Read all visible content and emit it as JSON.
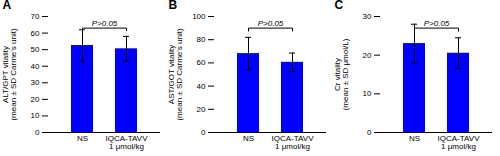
{
  "chart_data": [
    {
      "type": "bar",
      "title": "A",
      "ylabel": "ALT/GPT vitality\n(mean ± SD Carme's unit)",
      "categories": [
        "NS",
        "IQCA-TAVV\n1 μmol/kg"
      ],
      "values": [
        52.5,
        50.5
      ],
      "errors": [
        9.5,
        7.5
      ],
      "color": "#0000FF",
      "ylim": [
        0,
        70
      ],
      "yticks": [
        0,
        10,
        20,
        30,
        40,
        50,
        60,
        70
      ],
      "grid": false,
      "annotations": [
        {
          "text": "P>0.05",
          "y": 63,
          "drop": 1.5
        }
      ]
    },
    {
      "type": "bar",
      "title": "B",
      "ylabel": "AST/GOT vitality\n(mean ± SD Carme's unit)",
      "categories": [
        "NS",
        "IQCA-TAVV\n1 μmol/kg"
      ],
      "values": [
        68.0,
        60.5
      ],
      "errors": [
        14.0,
        8.0
      ],
      "color": "#0000FF",
      "ylim": [
        0,
        100
      ],
      "yticks": [
        0,
        20,
        40,
        60,
        80,
        100
      ],
      "grid": false,
      "annotations": [
        {
          "text": "P>0.05",
          "y": 90,
          "drop": 2.5
        }
      ]
    },
    {
      "type": "bar",
      "title": "C",
      "ylabel": "Cr vitality\n(mean ± SD μmol/L)",
      "categories": [
        "NS",
        "IQCA-TAVV\n1 μmol/kg"
      ],
      "values": [
        23.0,
        20.5
      ],
      "errors": [
        5.0,
        4.0
      ],
      "color": "#0000FF",
      "ylim": [
        0,
        30
      ],
      "yticks": [
        0,
        10,
        20,
        30
      ],
      "grid": false,
      "annotations": [
        {
          "text": "P>0.05",
          "y": 27,
          "drop": 0.8
        }
      ]
    }
  ]
}
